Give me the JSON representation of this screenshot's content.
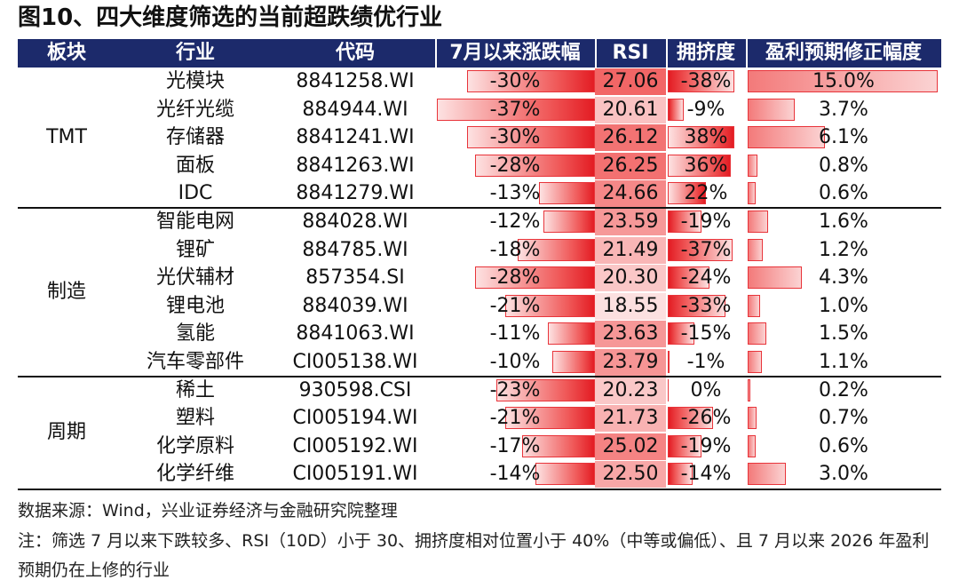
{
  "title": "图10、四大维度筛选的当前超跌绩优行业",
  "headers": [
    "板块",
    "行业",
    "代码",
    "7月以来涨跌幅",
    "RSI",
    "拥挤度",
    "盈利预期修正幅度"
  ],
  "groups": [
    {
      "name": "TMT",
      "rows": [
        {
          "industry": "光模块",
          "code": "8841258.WI",
          "chg": "-30%",
          "chg_v": -30,
          "rsi": "27.06",
          "rsi_v": 27.06,
          "crowd": "-38%",
          "crowd_v": -38,
          "rev": "15.0%",
          "rev_v": 15.0
        },
        {
          "industry": "光纤光缆",
          "code": "884944.WI",
          "chg": "-37%",
          "chg_v": -37,
          "rsi": "20.61",
          "rsi_v": 20.61,
          "crowd": "-9%",
          "crowd_v": -9,
          "rev": "3.7%",
          "rev_v": 3.7
        },
        {
          "industry": "存储器",
          "code": "8841241.WI",
          "chg": "-30%",
          "chg_v": -30,
          "rsi": "26.12",
          "rsi_v": 26.12,
          "crowd": "38%",
          "crowd_v": 38,
          "rev": "6.1%",
          "rev_v": 6.1
        },
        {
          "industry": "面板",
          "code": "8841263.WI",
          "chg": "-28%",
          "chg_v": -28,
          "rsi": "26.25",
          "rsi_v": 26.25,
          "crowd": "36%",
          "crowd_v": 36,
          "rev": "0.8%",
          "rev_v": 0.8
        },
        {
          "industry": "IDC",
          "code": "8841279.WI",
          "chg": "-13%",
          "chg_v": -13,
          "rsi": "24.66",
          "rsi_v": 24.66,
          "crowd": "22%",
          "crowd_v": 22,
          "rev": "0.6%",
          "rev_v": 0.6
        }
      ]
    },
    {
      "name": "制造",
      "rows": [
        {
          "industry": "智能电网",
          "code": "884028.WI",
          "chg": "-12%",
          "chg_v": -12,
          "rsi": "23.59",
          "rsi_v": 23.59,
          "crowd": "-19%",
          "crowd_v": -19,
          "rev": "1.6%",
          "rev_v": 1.6
        },
        {
          "industry": "锂矿",
          "code": "884785.WI",
          "chg": "-18%",
          "chg_v": -18,
          "rsi": "21.49",
          "rsi_v": 21.49,
          "crowd": "-37%",
          "crowd_v": -37,
          "rev": "1.2%",
          "rev_v": 1.2
        },
        {
          "industry": "光伏辅材",
          "code": "857354.SI",
          "chg": "-28%",
          "chg_v": -28,
          "rsi": "20.30",
          "rsi_v": 20.3,
          "crowd": "-24%",
          "crowd_v": -24,
          "rev": "4.3%",
          "rev_v": 4.3
        },
        {
          "industry": "锂电池",
          "code": "884039.WI",
          "chg": "-21%",
          "chg_v": -21,
          "rsi": "18.55",
          "rsi_v": 18.55,
          "crowd": "-33%",
          "crowd_v": -33,
          "rev": "1.0%",
          "rev_v": 1.0
        },
        {
          "industry": "氢能",
          "code": "8841063.WI",
          "chg": "-11%",
          "chg_v": -11,
          "rsi": "23.63",
          "rsi_v": 23.63,
          "crowd": "-15%",
          "crowd_v": -15,
          "rev": "1.5%",
          "rev_v": 1.5
        },
        {
          "industry": "汽车零部件",
          "code": "CI005138.WI",
          "chg": "-10%",
          "chg_v": -10,
          "rsi": "23.79",
          "rsi_v": 23.79,
          "crowd": "-1%",
          "crowd_v": -1,
          "rev": "1.1%",
          "rev_v": 1.1
        }
      ]
    },
    {
      "name": "周期",
      "rows": [
        {
          "industry": "稀土",
          "code": "930598.CSI",
          "chg": "-23%",
          "chg_v": -23,
          "rsi": "20.23",
          "rsi_v": 20.23,
          "crowd": "0%",
          "crowd_v": 0,
          "rev": "0.2%",
          "rev_v": 0.2
        },
        {
          "industry": "塑料",
          "code": "CI005194.WI",
          "chg": "-21%",
          "chg_v": -21,
          "rsi": "21.73",
          "rsi_v": 21.73,
          "crowd": "-26%",
          "crowd_v": -26,
          "rev": "0.7%",
          "rev_v": 0.7
        },
        {
          "industry": "化学原料",
          "code": "CI005192.WI",
          "chg": "-17%",
          "chg_v": -17,
          "rsi": "25.02",
          "rsi_v": 25.02,
          "crowd": "-19%",
          "crowd_v": -19,
          "rev": "0.6%",
          "rev_v": 0.6
        },
        {
          "industry": "化学纤维",
          "code": "CI005191.WI",
          "chg": "-14%",
          "chg_v": -14,
          "rsi": "22.50",
          "rsi_v": 22.5,
          "crowd": "-14%",
          "crowd_v": -14,
          "rev": "3.0%",
          "rev_v": 3.0
        }
      ]
    }
  ],
  "source": "数据来源：Wind，兴业证券经济与金融研究院整理",
  "note": "注：筛选 7 月以来下跌较多、RSI（10D）小于 30、拥挤度相对位置小于 40%（中等或偏低）、且 7 月以来 2026 年盈利预期仍在上修的行业",
  "colors": {
    "header_bg": "#1c2a6b",
    "bar_red": "#e31c23",
    "rsi_high": "#f25c5c",
    "rsi_low": "#fde6e6"
  }
}
